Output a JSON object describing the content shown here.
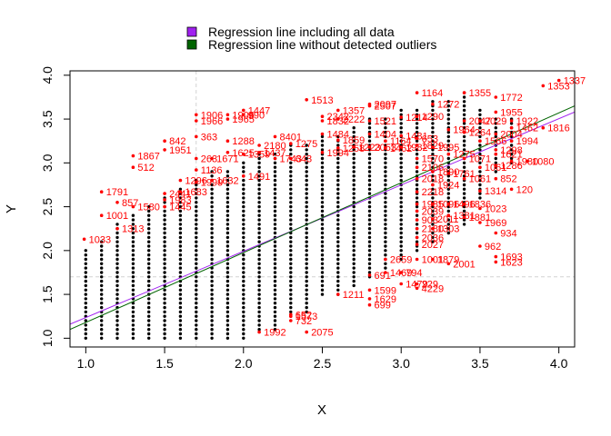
{
  "chart_data": {
    "type": "scatter",
    "xlabel": "X",
    "ylabel": "Y",
    "xlim": [
      0.9,
      4.1
    ],
    "ylim": [
      0.9,
      4.05
    ],
    "x_ticks": [
      1.0,
      1.5,
      2.0,
      2.5,
      3.0,
      3.5,
      4.0
    ],
    "y_ticks": [
      1.0,
      1.5,
      2.0,
      2.5,
      3.0,
      3.5,
      4.0
    ],
    "x_tick_labels": [
      "1.0",
      "1.5",
      "2.0",
      "2.5",
      "3.0",
      "3.5",
      "4.0"
    ],
    "y_tick_labels": [
      "1.0",
      "1.5",
      "2.0",
      "2.5",
      "3.0",
      "3.5",
      "4.0"
    ],
    "colors": {
      "inliers": "#000000",
      "outliers": "#ff0000",
      "all_line": "#a020f0",
      "clean_line": "#006400",
      "cutoff": "#d3d3d3"
    },
    "cutoff_lines": {
      "x": 1.7,
      "y": 1.7
    },
    "legend": [
      {
        "label": "Regression line including all data",
        "color": "#a020f0"
      },
      {
        "label": "Regression line without detected outliers",
        "color": "#006400"
      }
    ],
    "regression_lines": [
      {
        "x": [
          0.9,
          4.1
        ],
        "y": [
          1.16,
          3.58
        ],
        "color": "#a020f0"
      },
      {
        "x": [
          0.9,
          4.1
        ],
        "y": [
          1.1,
          3.65
        ],
        "color": "#006400"
      }
    ],
    "inlier_columns": [
      {
        "x": 1.0,
        "y_min": 1.0,
        "y_max": 2.0
      },
      {
        "x": 1.1,
        "y_min": 1.0,
        "y_max": 2.1
      },
      {
        "x": 1.2,
        "y_min": 1.0,
        "y_max": 2.3
      },
      {
        "x": 1.3,
        "y_min": 1.0,
        "y_max": 2.4
      },
      {
        "x": 1.4,
        "y_min": 1.0,
        "y_max": 2.5
      },
      {
        "x": 1.5,
        "y_min": 1.0,
        "y_max": 2.6
      },
      {
        "x": 1.6,
        "y_min": 1.0,
        "y_max": 2.7
      },
      {
        "x": 1.7,
        "y_min": 1.0,
        "y_max": 2.8
      },
      {
        "x": 1.8,
        "y_min": 1.0,
        "y_max": 2.9
      },
      {
        "x": 1.9,
        "y_min": 1.0,
        "y_max": 2.9
      },
      {
        "x": 2.0,
        "y_min": 1.0,
        "y_max": 3.0
      },
      {
        "x": 2.1,
        "y_min": 1.1,
        "y_max": 3.1
      },
      {
        "x": 2.2,
        "y_min": 1.1,
        "y_max": 3.1
      },
      {
        "x": 2.3,
        "y_min": 1.3,
        "y_max": 3.2
      },
      {
        "x": 2.4,
        "y_min": 1.3,
        "y_max": 3.2
      },
      {
        "x": 2.5,
        "y_min": 1.5,
        "y_max": 3.3
      },
      {
        "x": 2.6,
        "y_min": 1.5,
        "y_max": 3.3
      },
      {
        "x": 2.7,
        "y_min": 1.6,
        "y_max": 3.4
      },
      {
        "x": 2.8,
        "y_min": 1.7,
        "y_max": 3.5
      },
      {
        "x": 2.9,
        "y_min": 1.8,
        "y_max": 3.5
      },
      {
        "x": 3.0,
        "y_min": 1.9,
        "y_max": 3.6
      },
      {
        "x": 3.1,
        "y_min": 2.0,
        "y_max": 3.6
      },
      {
        "x": 3.2,
        "y_min": 2.1,
        "y_max": 3.7
      },
      {
        "x": 3.3,
        "y_min": 2.2,
        "y_max": 3.7
      },
      {
        "x": 3.4,
        "y_min": 2.3,
        "y_max": 3.8
      },
      {
        "x": 3.5,
        "y_min": 2.6,
        "y_max": 3.6
      },
      {
        "x": 3.6,
        "y_min": 2.9,
        "y_max": 3.5
      },
      {
        "x": 3.7,
        "y_min": 3.0,
        "y_max": 3.5
      }
    ],
    "outliers": [
      {
        "x": 0.99,
        "y": 2.13,
        "label": "1033"
      },
      {
        "x": 1.1,
        "y": 2.67,
        "label": "1791"
      },
      {
        "x": 1.1,
        "y": 2.4,
        "label": "1001"
      },
      {
        "x": 1.2,
        "y": 2.55,
        "label": "857"
      },
      {
        "x": 1.2,
        "y": 2.25,
        "label": "1313"
      },
      {
        "x": 1.3,
        "y": 2.5,
        "label": "1580"
      },
      {
        "x": 1.3,
        "y": 3.08,
        "label": "1867"
      },
      {
        "x": 1.3,
        "y": 2.95,
        "label": "512"
      },
      {
        "x": 1.5,
        "y": 3.25,
        "label": "842"
      },
      {
        "x": 1.5,
        "y": 3.15,
        "label": "1951"
      },
      {
        "x": 1.5,
        "y": 2.65,
        "label": "2441"
      },
      {
        "x": 1.5,
        "y": 2.58,
        "label": "1983"
      },
      {
        "x": 1.5,
        "y": 2.5,
        "label": "1445"
      },
      {
        "x": 1.6,
        "y": 2.8,
        "label": "1296"
      },
      {
        "x": 1.6,
        "y": 2.67,
        "label": "1683"
      },
      {
        "x": 1.7,
        "y": 3.55,
        "label": "1906"
      },
      {
        "x": 1.7,
        "y": 3.48,
        "label": "1966"
      },
      {
        "x": 1.7,
        "y": 3.3,
        "label": "363"
      },
      {
        "x": 1.7,
        "y": 3.05,
        "label": "263"
      },
      {
        "x": 1.7,
        "y": 2.92,
        "label": "1136"
      },
      {
        "x": 1.7,
        "y": 2.78,
        "label": "1999"
      },
      {
        "x": 1.8,
        "y": 3.05,
        "label": "1671"
      },
      {
        "x": 1.8,
        "y": 2.8,
        "label": "1632"
      },
      {
        "x": 1.9,
        "y": 3.55,
        "label": "1906"
      },
      {
        "x": 1.9,
        "y": 3.5,
        "label": "1965"
      },
      {
        "x": 1.9,
        "y": 3.25,
        "label": "1288"
      },
      {
        "x": 1.9,
        "y": 3.12,
        "label": "1625"
      },
      {
        "x": 2.0,
        "y": 3.55,
        "label": "990"
      },
      {
        "x": 2.0,
        "y": 3.6,
        "label": "1447"
      },
      {
        "x": 2.0,
        "y": 3.1,
        "label": "1359"
      },
      {
        "x": 2.0,
        "y": 2.85,
        "label": "1491"
      },
      {
        "x": 2.1,
        "y": 3.2,
        "label": "2180"
      },
      {
        "x": 2.1,
        "y": 3.12,
        "label": "1437"
      },
      {
        "x": 2.1,
        "y": 1.07,
        "label": "1992"
      },
      {
        "x": 2.2,
        "y": 3.3,
        "label": "8401"
      },
      {
        "x": 2.2,
        "y": 3.05,
        "label": "1743"
      },
      {
        "x": 2.3,
        "y": 3.22,
        "label": "1275"
      },
      {
        "x": 2.3,
        "y": 3.05,
        "label": "643"
      },
      {
        "x": 2.3,
        "y": 1.27,
        "label": "652"
      },
      {
        "x": 2.3,
        "y": 1.25,
        "label": "1573"
      },
      {
        "x": 2.3,
        "y": 1.2,
        "label": "732"
      },
      {
        "x": 2.4,
        "y": 3.72,
        "label": "1513"
      },
      {
        "x": 2.4,
        "y": 1.07,
        "label": "2075"
      },
      {
        "x": 2.5,
        "y": 3.53,
        "label": "2342"
      },
      {
        "x": 2.5,
        "y": 3.48,
        "label": "1832"
      },
      {
        "x": 2.5,
        "y": 3.33,
        "label": "1484"
      },
      {
        "x": 2.5,
        "y": 3.12,
        "label": "1994"
      },
      {
        "x": 2.6,
        "y": 3.6,
        "label": "1357"
      },
      {
        "x": 2.6,
        "y": 3.5,
        "label": "2222"
      },
      {
        "x": 2.6,
        "y": 3.26,
        "label": "1859"
      },
      {
        "x": 2.6,
        "y": 3.17,
        "label": "1258"
      },
      {
        "x": 2.6,
        "y": 1.5,
        "label": "1211"
      },
      {
        "x": 2.7,
        "y": 3.18,
        "label": "1223"
      },
      {
        "x": 2.8,
        "y": 3.67,
        "label": "2097"
      },
      {
        "x": 2.8,
        "y": 3.65,
        "label": "2507"
      },
      {
        "x": 2.8,
        "y": 3.48,
        "label": "1521"
      },
      {
        "x": 2.8,
        "y": 3.33,
        "label": "1404"
      },
      {
        "x": 2.8,
        "y": 3.18,
        "label": "2053"
      },
      {
        "x": 2.8,
        "y": 1.72,
        "label": "691"
      },
      {
        "x": 2.8,
        "y": 1.55,
        "label": "1599"
      },
      {
        "x": 2.8,
        "y": 1.45,
        "label": "1629"
      },
      {
        "x": 2.8,
        "y": 1.38,
        "label": "699"
      },
      {
        "x": 2.9,
        "y": 3.25,
        "label": "1164"
      },
      {
        "x": 2.9,
        "y": 3.17,
        "label": "1462"
      },
      {
        "x": 2.9,
        "y": 1.9,
        "label": "2659"
      },
      {
        "x": 2.9,
        "y": 1.75,
        "label": "1469"
      },
      {
        "x": 3.0,
        "y": 3.52,
        "label": "1214"
      },
      {
        "x": 3.0,
        "y": 3.31,
        "label": "1481"
      },
      {
        "x": 3.0,
        "y": 3.18,
        "label": "1982"
      },
      {
        "x": 3.0,
        "y": 1.75,
        "label": "794"
      },
      {
        "x": 3.0,
        "y": 1.62,
        "label": "1479"
      },
      {
        "x": 3.1,
        "y": 3.8,
        "label": "1164"
      },
      {
        "x": 3.1,
        "y": 3.53,
        "label": "1290"
      },
      {
        "x": 3.1,
        "y": 3.28,
        "label": "653"
      },
      {
        "x": 3.1,
        "y": 3.2,
        "label": "1829"
      },
      {
        "x": 3.1,
        "y": 3.05,
        "label": "1570"
      },
      {
        "x": 3.1,
        "y": 2.95,
        "label": "2106"
      },
      {
        "x": 3.1,
        "y": 2.82,
        "label": "2018"
      },
      {
        "x": 3.1,
        "y": 2.67,
        "label": "2218"
      },
      {
        "x": 3.1,
        "y": 2.53,
        "label": "1985"
      },
      {
        "x": 3.1,
        "y": 2.45,
        "label": "2039"
      },
      {
        "x": 3.1,
        "y": 2.35,
        "label": "903"
      },
      {
        "x": 3.1,
        "y": 2.25,
        "label": "2180"
      },
      {
        "x": 3.1,
        "y": 2.15,
        "label": "2036"
      },
      {
        "x": 3.1,
        "y": 2.07,
        "label": "2027"
      },
      {
        "x": 3.1,
        "y": 1.9,
        "label": "1001"
      },
      {
        "x": 3.1,
        "y": 1.62,
        "label": "229"
      },
      {
        "x": 3.1,
        "y": 1.57,
        "label": "4229"
      },
      {
        "x": 3.2,
        "y": 3.67,
        "label": "1272"
      },
      {
        "x": 3.2,
        "y": 3.18,
        "label": "1995"
      },
      {
        "x": 3.2,
        "y": 2.9,
        "label": "1890"
      },
      {
        "x": 3.2,
        "y": 2.75,
        "label": "1924"
      },
      {
        "x": 3.2,
        "y": 2.53,
        "label": "1096"
      },
      {
        "x": 3.2,
        "y": 2.36,
        "label": "2011"
      },
      {
        "x": 3.2,
        "y": 2.25,
        "label": "1303"
      },
      {
        "x": 3.2,
        "y": 1.9,
        "label": "1879"
      },
      {
        "x": 3.3,
        "y": 3.38,
        "label": "1964"
      },
      {
        "x": 3.3,
        "y": 3.1,
        "label": "1275"
      },
      {
        "x": 3.3,
        "y": 2.88,
        "label": "1761"
      },
      {
        "x": 3.3,
        "y": 2.53,
        "label": "1496"
      },
      {
        "x": 3.3,
        "y": 2.4,
        "label": "1381"
      },
      {
        "x": 3.3,
        "y": 1.85,
        "label": "2001"
      },
      {
        "x": 3.4,
        "y": 3.8,
        "label": "1355"
      },
      {
        "x": 3.4,
        "y": 3.48,
        "label": "2047"
      },
      {
        "x": 3.4,
        "y": 3.35,
        "label": "1264"
      },
      {
        "x": 3.4,
        "y": 3.05,
        "label": "1071"
      },
      {
        "x": 3.4,
        "y": 2.82,
        "label": "1061"
      },
      {
        "x": 3.4,
        "y": 2.53,
        "label": "1836"
      },
      {
        "x": 3.4,
        "y": 2.38,
        "label": "1881"
      },
      {
        "x": 3.5,
        "y": 3.48,
        "label": "2029"
      },
      {
        "x": 3.5,
        "y": 3.25,
        "label": "1566"
      },
      {
        "x": 3.5,
        "y": 2.95,
        "label": "1061"
      },
      {
        "x": 3.5,
        "y": 2.68,
        "label": "1314"
      },
      {
        "x": 3.5,
        "y": 2.48,
        "label": "1023"
      },
      {
        "x": 3.5,
        "y": 2.32,
        "label": "1969"
      },
      {
        "x": 3.5,
        "y": 2.05,
        "label": "962"
      },
      {
        "x": 3.6,
        "y": 3.75,
        "label": "1772"
      },
      {
        "x": 3.6,
        "y": 3.58,
        "label": "1955"
      },
      {
        "x": 3.6,
        "y": 3.33,
        "label": "2004"
      },
      {
        "x": 3.6,
        "y": 3.15,
        "label": "1298"
      },
      {
        "x": 3.6,
        "y": 3.1,
        "label": "1621"
      },
      {
        "x": 3.6,
        "y": 2.97,
        "label": "1286"
      },
      {
        "x": 3.6,
        "y": 2.82,
        "label": "852"
      },
      {
        "x": 3.6,
        "y": 2.2,
        "label": "934"
      },
      {
        "x": 3.6,
        "y": 1.93,
        "label": "1693"
      },
      {
        "x": 3.6,
        "y": 1.87,
        "label": "1623"
      },
      {
        "x": 3.7,
        "y": 3.48,
        "label": "1922"
      },
      {
        "x": 3.7,
        "y": 3.4,
        "label": "1462"
      },
      {
        "x": 3.7,
        "y": 3.25,
        "label": "1994"
      },
      {
        "x": 3.7,
        "y": 3.02,
        "label": "1980"
      },
      {
        "x": 3.7,
        "y": 2.7,
        "label": "120"
      },
      {
        "x": 3.8,
        "y": 3.02,
        "label": "1080"
      },
      {
        "x": 3.9,
        "y": 3.4,
        "label": "1816"
      },
      {
        "x": 3.9,
        "y": 3.88,
        "label": "1353"
      },
      {
        "x": 4.0,
        "y": 3.94,
        "label": "1337"
      }
    ]
  }
}
